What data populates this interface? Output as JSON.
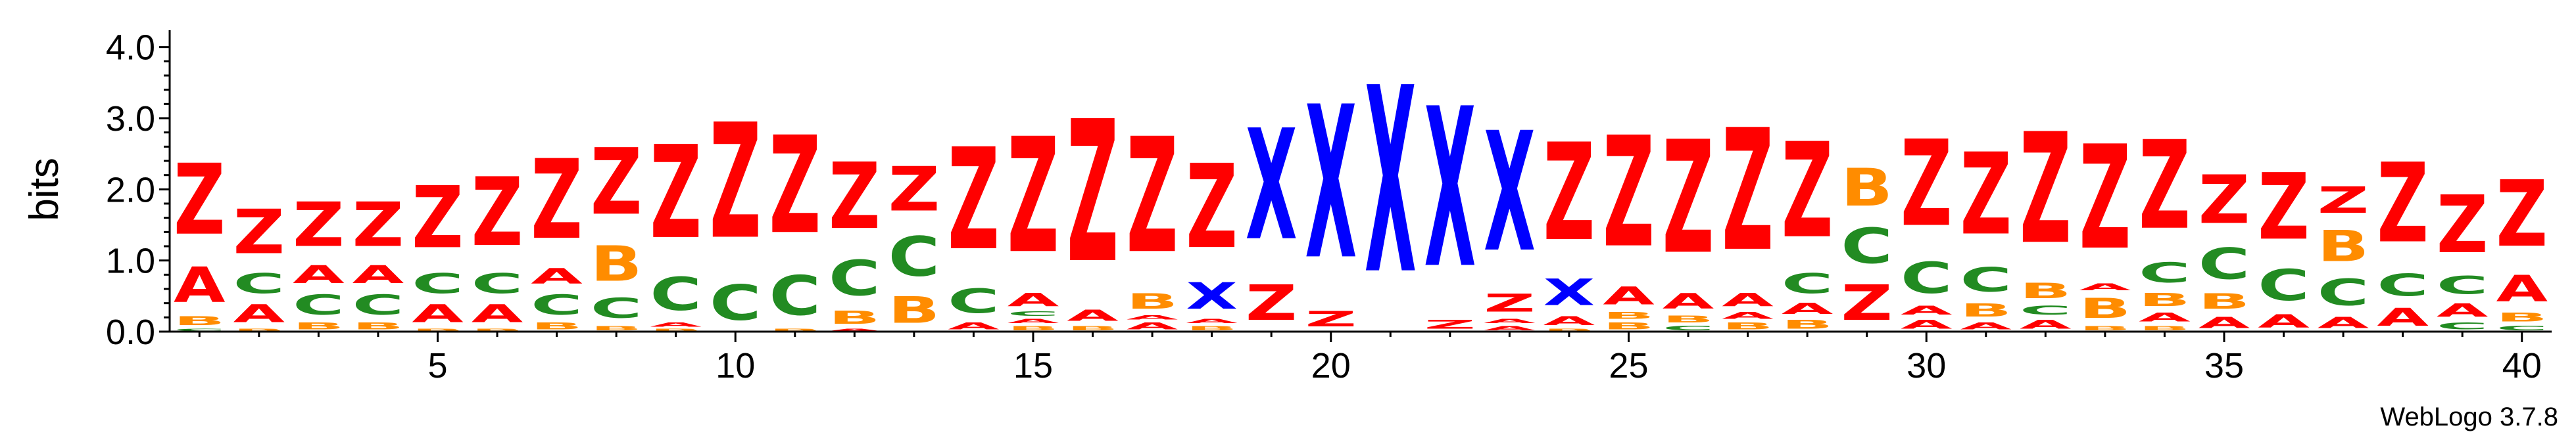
{
  "chart_data": {
    "type": "sequence-logo",
    "ylabel": "bits",
    "ylim": [
      0,
      4.2
    ],
    "yticks": [
      "0.0",
      "1.0",
      "2.0",
      "3.0",
      "4.0"
    ],
    "xticks": [
      "5",
      "10",
      "15",
      "20",
      "25",
      "30",
      "35",
      "40"
    ],
    "credit": "WebLogo 3.7.8",
    "colors": {
      "Z": "#ff0000",
      "X": "#0000ff",
      "C": "#228b22",
      "A": "#ff0000",
      "B": "#ff8c00"
    },
    "positions": [
      {
        "pos": 1,
        "stack": [
          [
            "C",
            0.05
          ],
          [
            "B",
            0.2
          ],
          [
            "A",
            0.8
          ],
          [
            "Z",
            1.6
          ]
        ]
      },
      {
        "pos": 2,
        "stack": [
          [
            "B",
            0.05
          ],
          [
            "A",
            0.4
          ],
          [
            "C",
            0.45
          ],
          [
            "Z",
            1.0
          ]
        ]
      },
      {
        "pos": 3,
        "stack": [
          [
            "B",
            0.15
          ],
          [
            "C",
            0.45
          ],
          [
            "A",
            0.4
          ],
          [
            "Z",
            1.0
          ]
        ]
      },
      {
        "pos": 4,
        "stack": [
          [
            "B",
            0.15
          ],
          [
            "C",
            0.45
          ],
          [
            "A",
            0.4
          ],
          [
            "Z",
            1.0
          ]
        ]
      },
      {
        "pos": 5,
        "stack": [
          [
            "B",
            0.05
          ],
          [
            "A",
            0.4
          ],
          [
            "C",
            0.45
          ],
          [
            "Z",
            1.4
          ]
        ]
      },
      {
        "pos": 6,
        "stack": [
          [
            "B",
            0.05
          ],
          [
            "A",
            0.4
          ],
          [
            "C",
            0.45
          ],
          [
            "Z",
            1.55
          ]
        ]
      },
      {
        "pos": 7,
        "stack": [
          [
            "B",
            0.15
          ],
          [
            "C",
            0.45
          ],
          [
            "A",
            0.35
          ],
          [
            "Z",
            1.8
          ]
        ]
      },
      {
        "pos": 8,
        "stack": [
          [
            "B",
            0.1
          ],
          [
            "C",
            0.45
          ],
          [
            "B",
            0.8
          ],
          [
            "Z",
            1.5
          ]
        ]
      },
      {
        "pos": 9,
        "stack": [
          [
            "B",
            0.05
          ],
          [
            "A",
            0.1
          ],
          [
            "C",
            0.75
          ],
          [
            "Z",
            2.1
          ]
        ]
      },
      {
        "pos": 10,
        "stack": [
          [
            "C",
            0.8
          ],
          [
            "Z",
            2.6
          ]
        ]
      },
      {
        "pos": 11,
        "stack": [
          [
            "B",
            0.05
          ],
          [
            "C",
            0.9
          ],
          [
            "Z",
            2.2
          ]
        ]
      },
      {
        "pos": 12,
        "stack": [
          [
            "A",
            0.05
          ],
          [
            "B",
            0.3
          ],
          [
            "C",
            0.8
          ],
          [
            "Z",
            1.5
          ]
        ]
      },
      {
        "pos": 13,
        "stack": [
          [
            "B",
            0.6
          ],
          [
            "C",
            0.9
          ],
          [
            "Z",
            1.0
          ]
        ]
      },
      {
        "pos": 14,
        "stack": [
          [
            "A",
            0.15
          ],
          [
            "C",
            0.55
          ],
          [
            "Z",
            2.3
          ]
        ]
      },
      {
        "pos": 15,
        "stack": [
          [
            "B",
            0.1
          ],
          [
            "A",
            0.1
          ],
          [
            "C",
            0.1
          ],
          [
            "A",
            0.3
          ],
          [
            "Z",
            2.6
          ]
        ]
      },
      {
        "pos": 16,
        "stack": [
          [
            "B",
            0.1
          ],
          [
            "A",
            0.25
          ],
          [
            "Z",
            3.2
          ]
        ]
      },
      {
        "pos": 17,
        "stack": [
          [
            "A",
            0.15
          ],
          [
            "A",
            0.1
          ],
          [
            "B",
            0.35
          ],
          [
            "Z",
            2.6
          ]
        ]
      },
      {
        "pos": 18,
        "stack": [
          [
            "B",
            0.1
          ],
          [
            "A",
            0.1
          ],
          [
            "X",
            0.6
          ],
          [
            "Z",
            1.9
          ]
        ]
      },
      {
        "pos": 19,
        "stack": [
          [
            "Z",
            0.8
          ],
          [
            "X",
            2.5
          ]
        ]
      },
      {
        "pos": 20,
        "stack": [
          [
            "Z",
            0.35
          ],
          [
            "X",
            3.45
          ]
        ]
      },
      {
        "pos": 21,
        "stack": [
          [
            "X",
            4.2
          ]
        ]
      },
      {
        "pos": 22,
        "stack": [
          [
            "Z",
            0.2
          ],
          [
            "X",
            3.6
          ]
        ]
      },
      {
        "pos": 23,
        "stack": [
          [
            "A",
            0.1
          ],
          [
            "A",
            0.1
          ],
          [
            "Z",
            0.4
          ],
          [
            "X",
            2.7
          ]
        ]
      },
      {
        "pos": 24,
        "stack": [
          [
            "B",
            0.05
          ],
          [
            "A",
            0.2
          ],
          [
            "X",
            0.6
          ],
          [
            "Z",
            2.2
          ]
        ]
      },
      {
        "pos": 25,
        "stack": [
          [
            "B",
            0.15
          ],
          [
            "B",
            0.15
          ],
          [
            "A",
            0.4
          ],
          [
            "Z",
            2.5
          ]
        ]
      },
      {
        "pos": 26,
        "stack": [
          [
            "C",
            0.1
          ],
          [
            "B",
            0.15
          ],
          [
            "A",
            0.35
          ],
          [
            "Z",
            2.55
          ]
        ]
      },
      {
        "pos": 27,
        "stack": [
          [
            "B",
            0.15
          ],
          [
            "A",
            0.15
          ],
          [
            "A",
            0.3
          ],
          [
            "Z",
            2.75
          ]
        ]
      },
      {
        "pos": 28,
        "stack": [
          [
            "B",
            0.2
          ],
          [
            "A",
            0.25
          ],
          [
            "C",
            0.45
          ],
          [
            "Z",
            2.15
          ]
        ]
      },
      {
        "pos": 29,
        "stack": [
          [
            "Z",
            0.8
          ],
          [
            "C",
            0.8
          ],
          [
            "B",
            0.85
          ]
        ]
      },
      {
        "pos": 30,
        "stack": [
          [
            "A",
            0.2
          ],
          [
            "A",
            0.2
          ],
          [
            "C",
            0.7
          ],
          [
            "Z",
            1.95
          ]
        ]
      },
      {
        "pos": 31,
        "stack": [
          [
            "A",
            0.15
          ],
          [
            "B",
            0.3
          ],
          [
            "C",
            0.55
          ],
          [
            "Z",
            1.85
          ]
        ]
      },
      {
        "pos": 32,
        "stack": [
          [
            "A",
            0.2
          ],
          [
            "C",
            0.2
          ],
          [
            "B",
            0.35
          ],
          [
            "Z",
            2.5
          ]
        ]
      },
      {
        "pos": 33,
        "stack": [
          [
            "B",
            0.1
          ],
          [
            "B",
            0.45
          ],
          [
            "A",
            0.15
          ],
          [
            "Z",
            2.35
          ]
        ]
      },
      {
        "pos": 34,
        "stack": [
          [
            "B",
            0.1
          ],
          [
            "A",
            0.2
          ],
          [
            "B",
            0.3
          ],
          [
            "C",
            0.45
          ],
          [
            "Z",
            2.0
          ]
        ]
      },
      {
        "pos": 35,
        "stack": [
          [
            "A",
            0.25
          ],
          [
            "B",
            0.35
          ],
          [
            "C",
            0.7
          ],
          [
            "Z",
            1.1
          ]
        ]
      },
      {
        "pos": 36,
        "stack": [
          [
            "A",
            0.3
          ],
          [
            "C",
            0.7
          ],
          [
            "Z",
            1.5
          ]
        ]
      },
      {
        "pos": 37,
        "stack": [
          [
            "A",
            0.25
          ],
          [
            "C",
            0.6
          ],
          [
            "B",
            0.7
          ],
          [
            "Z",
            0.6
          ]
        ]
      },
      {
        "pos": 38,
        "stack": [
          [
            "A",
            0.4
          ],
          [
            "C",
            0.5
          ],
          [
            "Z",
            1.8
          ]
        ]
      },
      {
        "pos": 39,
        "stack": [
          [
            "C",
            0.15
          ],
          [
            "A",
            0.3
          ],
          [
            "C",
            0.4
          ],
          [
            "Z",
            1.3
          ]
        ]
      },
      {
        "pos": 40,
        "stack": [
          [
            "C",
            0.1
          ],
          [
            "B",
            0.2
          ],
          [
            "A",
            0.6
          ],
          [
            "Z",
            1.5
          ]
        ]
      }
    ]
  }
}
